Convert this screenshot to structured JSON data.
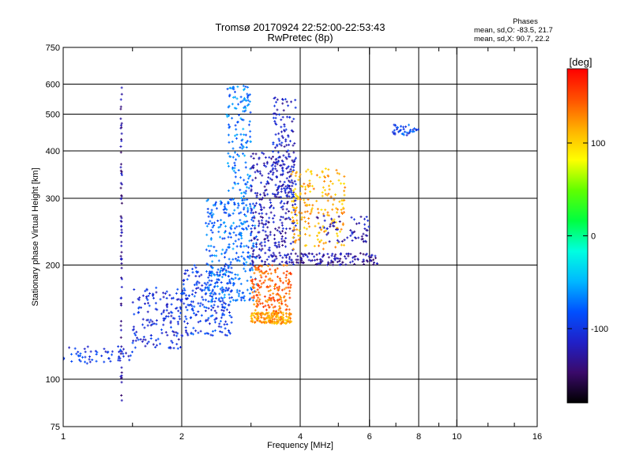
{
  "header": {
    "title_line1": "Tromsø 20170924 22:52:00-22:53:43",
    "title_line2": "RwPretec (8p)"
  },
  "phases_box": {
    "heading": "Phases",
    "line_o": "mean, sd,O: -83.5, 21.7",
    "line_x": "mean, sd,X:  90.7, 22.2"
  },
  "colorbar": {
    "unit_label": "[deg]",
    "tick_labels": [
      "100",
      "0",
      "-100"
    ],
    "tick_values": [
      100,
      0,
      -100
    ],
    "range": [
      -180,
      180
    ],
    "colormap": [
      "#000000",
      "#3a0a6a",
      "#2020c8",
      "#0050ff",
      "#00b8ff",
      "#00ffe0",
      "#00ff40",
      "#60ff00",
      "#ffff00",
      "#ffb000",
      "#ff5000",
      "#ff0000"
    ]
  },
  "chart_data": {
    "type": "scatter",
    "title": "Tromsø 20170924 22:52:00-22:53:43",
    "subtitle": "RwPretec (8p)",
    "xlabel": "Frequency [MHz]",
    "ylabel": "Stationary phase Virtual Height [km]",
    "x_scale": "log",
    "y_scale": "log",
    "xlim": [
      1,
      16
    ],
    "ylim": [
      75,
      750
    ],
    "x_ticks": [
      1,
      2,
      4,
      6,
      8,
      10,
      16
    ],
    "x_tick_labels": [
      "1",
      "2",
      "4",
      "6",
      "8",
      "10",
      "16"
    ],
    "x_minor_ticks": [
      1.5,
      3,
      5,
      7,
      9,
      12,
      14
    ],
    "y_ticks": [
      75,
      100,
      200,
      300,
      400,
      500,
      600,
      750
    ],
    "y_tick_labels": [
      "75",
      "100",
      "200",
      "300",
      "400",
      "500",
      "600",
      "750"
    ],
    "grid_x": [
      2,
      4,
      6,
      8,
      10
    ],
    "grid_y": [
      100,
      200,
      300,
      400,
      500,
      600
    ],
    "grid": true,
    "color_value": "phase [deg]",
    "clusters": [
      {
        "fmin": 1.0,
        "fmax": 1.5,
        "hmin": 110,
        "hmax": 122,
        "phase": -100,
        "n": 60
      },
      {
        "fmin": 1.5,
        "fmax": 2.0,
        "hmin": 120,
        "hmax": 175,
        "phase": -105,
        "n": 150
      },
      {
        "fmin": 2.0,
        "fmax": 2.7,
        "hmin": 130,
        "hmax": 200,
        "phase": -95,
        "n": 220
      },
      {
        "fmin": 2.3,
        "fmax": 3.1,
        "hmin": 160,
        "hmax": 300,
        "phase": -75,
        "n": 320
      },
      {
        "fmin": 2.6,
        "fmax": 3.0,
        "hmin": 300,
        "hmax": 600,
        "phase": -70,
        "n": 140
      },
      {
        "fmin": 3.0,
        "fmax": 3.8,
        "hmin": 140,
        "hmax": 150,
        "phase": 120,
        "n": 160
      },
      {
        "fmin": 3.0,
        "fmax": 3.8,
        "hmin": 150,
        "hmax": 200,
        "phase": 140,
        "n": 180
      },
      {
        "fmin": 3.0,
        "fmax": 3.9,
        "hmin": 200,
        "hmax": 400,
        "phase": -120,
        "n": 330
      },
      {
        "fmin": 3.4,
        "fmax": 3.9,
        "hmin": 300,
        "hmax": 560,
        "phase": -115,
        "n": 120
      },
      {
        "fmin": 3.8,
        "fmax": 5.2,
        "hmin": 220,
        "hmax": 360,
        "phase": 115,
        "n": 200
      },
      {
        "fmin": 3.9,
        "fmax": 6.3,
        "hmin": 200,
        "hmax": 215,
        "phase": -130,
        "n": 120
      },
      {
        "fmin": 4.4,
        "fmax": 6.0,
        "hmin": 230,
        "hmax": 270,
        "phase": -120,
        "n": 60
      },
      {
        "fmin": 6.8,
        "fmax": 8.0,
        "hmin": 440,
        "hmax": 470,
        "phase": -90,
        "n": 40
      },
      {
        "fmin": 1.4,
        "fmax": 1.41,
        "hmin": 85,
        "hmax": 600,
        "phase": -130,
        "n": 70
      }
    ]
  }
}
